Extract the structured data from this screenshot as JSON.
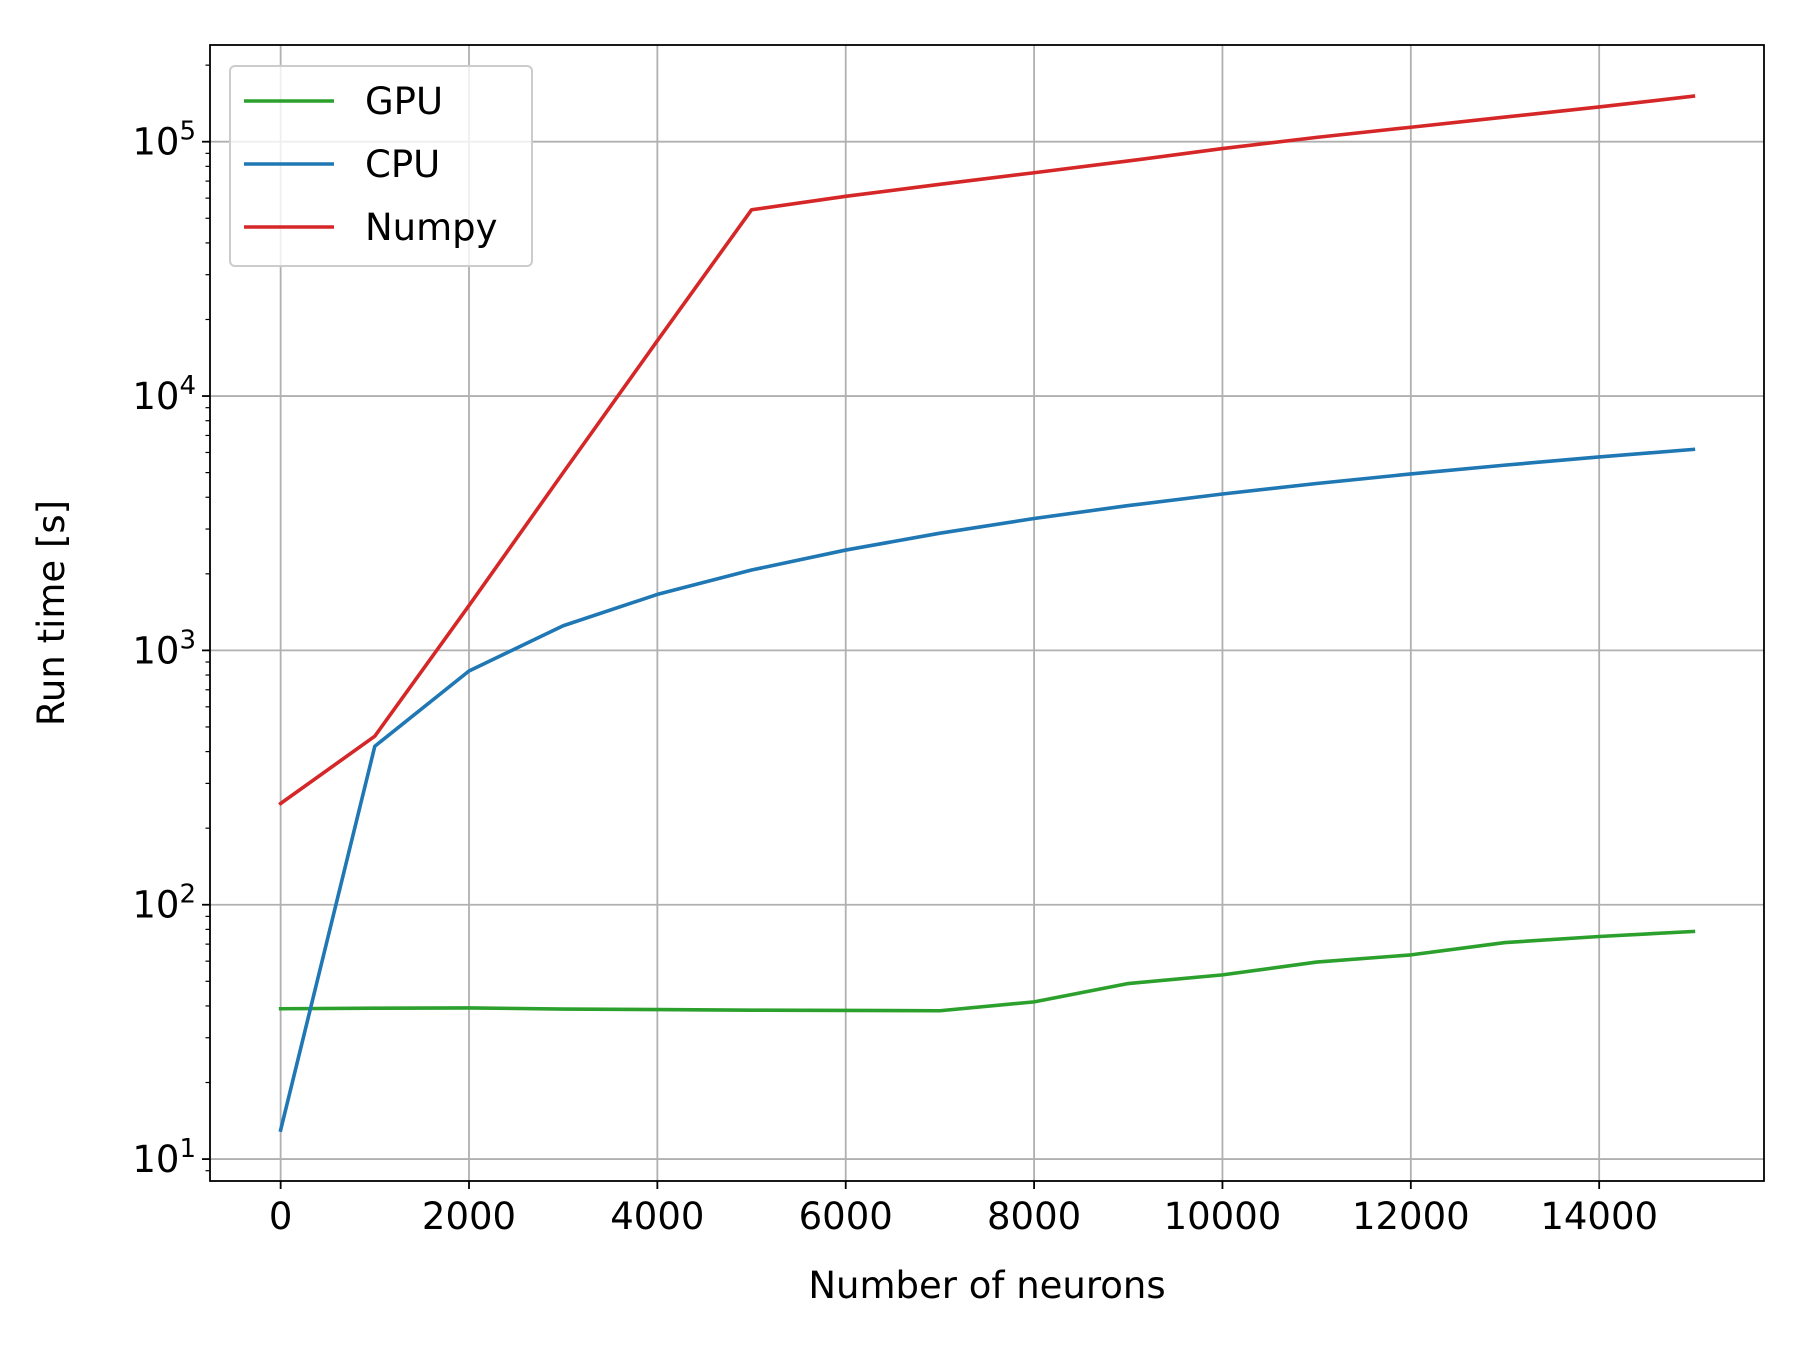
{
  "chart_data": {
    "type": "line",
    "title": "",
    "xlabel": "Number of neurons",
    "ylabel": "Run time [s]",
    "xscale": "linear",
    "yscale": "log",
    "xlim": [
      -750,
      15750
    ],
    "ylim": [
      8.2,
      240000
    ],
    "grid": true,
    "legend_position": "top-left",
    "x_ticks": [
      0,
      2000,
      4000,
      6000,
      8000,
      10000,
      12000,
      14000
    ],
    "x_tick_labels": [
      "0",
      "2000",
      "4000",
      "6000",
      "8000",
      "10000",
      "12000",
      "14000"
    ],
    "y_ticks": [
      10,
      100,
      1000,
      10000,
      100000
    ],
    "y_tick_labels": [
      {
        "base": "10",
        "exp": "1"
      },
      {
        "base": "10",
        "exp": "2"
      },
      {
        "base": "10",
        "exp": "3"
      },
      {
        "base": "10",
        "exp": "4"
      },
      {
        "base": "10",
        "exp": "5"
      }
    ],
    "x": [
      0,
      1000,
      2000,
      3000,
      4000,
      5000,
      6000,
      7000,
      8000,
      9000,
      10000,
      11000,
      12000,
      13000,
      14000,
      15000
    ],
    "series": [
      {
        "name": "GPU",
        "color": "#2ca02c",
        "values": [
          39,
          39.2,
          39.3,
          38.9,
          38.7,
          38.5,
          38.4,
          38.3,
          41.5,
          49,
          53,
          59.5,
          63.5,
          71,
          75,
          78.5
        ]
      },
      {
        "name": "CPU",
        "color": "#1f77b4",
        "values": [
          13,
          420,
          830,
          1250,
          1660,
          2070,
          2480,
          2890,
          3300,
          3710,
          4120,
          4530,
          4940,
          5350,
          5760,
          6170
        ]
      },
      {
        "name": "Numpy",
        "color": "#d62728",
        "values": [
          250,
          460,
          1500,
          5000,
          16500,
          54000,
          61000,
          68000,
          75500,
          84000,
          94000,
          104000,
          114000,
          125000,
          137000,
          151000
        ]
      }
    ]
  }
}
